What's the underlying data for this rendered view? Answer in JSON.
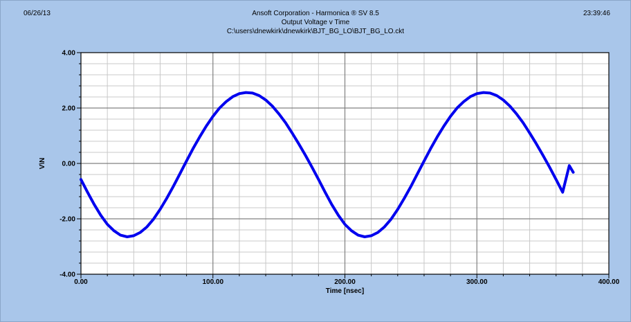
{
  "header": {
    "date": "06/26/13",
    "time": "23:39:46",
    "app": "Ansoft Corporation - Harmonica ® SV 8.5",
    "title": "Output Voltage v Time",
    "path": "C:\\users\\dnewkirk\\dnewkirk\\BJT_BG_LO\\BJT_BG_LO.ckt"
  },
  "colors": {
    "background": "#a9c6ea",
    "plot_area": "#ffffff",
    "series": "#0000ee",
    "grid_major": "#808080",
    "grid_minor": "#c8c8c8"
  },
  "chart_data": {
    "type": "line",
    "title": "Output Voltage v Time",
    "xlabel": "Time [nsec]",
    "ylabel": "V\\N",
    "xlim": [
      0,
      400
    ],
    "ylim": [
      -4,
      4
    ],
    "x_ticks": [
      "0.00",
      "100.00",
      "200.00",
      "300.00",
      "400.00"
    ],
    "y_ticks": [
      "4.00",
      "2.00",
      "0.00",
      "-2.00",
      "-4.00"
    ],
    "grid": true,
    "series": [
      {
        "name": "",
        "x": [
          0,
          5,
          10,
          15,
          20,
          25,
          30,
          35,
          40,
          45,
          50,
          55,
          60,
          65,
          70,
          75,
          80,
          85,
          90,
          95,
          100,
          105,
          110,
          115,
          120,
          125,
          130,
          135,
          140,
          145,
          150,
          155,
          160,
          165,
          170,
          175,
          180,
          185,
          190,
          195,
          200,
          205,
          210,
          215,
          220,
          225,
          230,
          235,
          240,
          245,
          250,
          255,
          260,
          265,
          270,
          275,
          280,
          285,
          290,
          295,
          300,
          305,
          310,
          315,
          320,
          325,
          330,
          335,
          340,
          345,
          350,
          355,
          360,
          365,
          370,
          373
        ],
        "y": [
          -0.58,
          -1.04,
          -1.48,
          -1.87,
          -2.2,
          -2.43,
          -2.59,
          -2.65,
          -2.61,
          -2.49,
          -2.29,
          -2.01,
          -1.66,
          -1.26,
          -0.83,
          -0.37,
          0.09,
          0.54,
          0.96,
          1.35,
          1.7,
          2.0,
          2.23,
          2.41,
          2.52,
          2.56,
          2.54,
          2.45,
          2.29,
          2.07,
          1.79,
          1.47,
          1.1,
          0.71,
          0.3,
          -0.13,
          -0.58,
          -1.04,
          -1.48,
          -1.87,
          -2.2,
          -2.43,
          -2.59,
          -2.65,
          -2.61,
          -2.49,
          -2.29,
          -2.01,
          -1.66,
          -1.26,
          -0.83,
          -0.37,
          0.09,
          0.54,
          0.96,
          1.35,
          1.7,
          2.0,
          2.23,
          2.41,
          2.52,
          2.56,
          2.54,
          2.45,
          2.29,
          2.07,
          1.79,
          1.47,
          1.1,
          0.71,
          0.3,
          -0.13,
          -0.58,
          -1.04,
          -0.08,
          -0.32
        ]
      }
    ]
  }
}
